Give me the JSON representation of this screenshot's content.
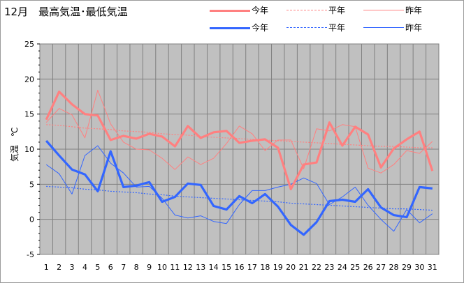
{
  "title": "12月　最高気温･最低気温",
  "legend": [
    {
      "label": "今年",
      "color": "#ff8080",
      "style": "thick"
    },
    {
      "label": "平年",
      "color": "#ff8080",
      "style": "dashed"
    },
    {
      "label": "昨年",
      "color": "#ff8080",
      "style": "thin"
    },
    {
      "label": "今年",
      "color": "#3366ff",
      "style": "thick"
    },
    {
      "label": "平年",
      "color": "#3366ff",
      "style": "dashed"
    },
    {
      "label": "昨年",
      "color": "#3366ff",
      "style": "thin"
    }
  ],
  "chart_data": {
    "type": "line",
    "title": "12月　最高気温･最低気温",
    "ylabel": "気温　℃",
    "xlabel": "",
    "x": [
      1,
      2,
      3,
      4,
      5,
      6,
      7,
      8,
      9,
      10,
      11,
      12,
      13,
      14,
      15,
      16,
      17,
      18,
      19,
      20,
      21,
      22,
      23,
      24,
      25,
      26,
      27,
      28,
      29,
      30,
      31
    ],
    "ylim": [
      -5,
      25
    ],
    "yticks": [
      -5,
      0,
      5,
      10,
      15,
      20,
      25
    ],
    "grid": true,
    "series": [
      {
        "group": "max",
        "name": "今年",
        "color": "#ff8080",
        "style": "thick",
        "values": [
          14.2,
          18.2,
          16.4,
          15.0,
          14.8,
          11.3,
          11.9,
          11.5,
          12.2,
          11.8,
          10.4,
          13.3,
          11.6,
          12.4,
          12.6,
          10.9,
          11.2,
          11.4,
          10.2,
          4.3,
          7.8,
          8.1,
          13.8,
          10.5,
          13.2,
          12.1,
          7.4,
          10.1,
          11.4,
          12.5,
          6.9
        ]
      },
      {
        "group": "max",
        "name": "平年",
        "color": "#ff8080",
        "style": "dashed",
        "values": [
          13.5,
          13.4,
          13.2,
          13.0,
          12.9,
          12.8,
          12.6,
          12.5,
          12.4,
          12.2,
          12.1,
          12.0,
          11.8,
          11.7,
          11.6,
          11.5,
          11.4,
          11.3,
          11.2,
          11.1,
          11.0,
          10.9,
          10.8,
          10.7,
          10.6,
          10.5,
          10.4,
          10.4,
          10.3,
          10.2,
          10.2
        ]
      },
      {
        "group": "max",
        "name": "昨年",
        "color": "#ff8080",
        "style": "thin",
        "values": [
          13.8,
          15.8,
          14.9,
          11.6,
          18.4,
          13.6,
          11.0,
          10.0,
          9.9,
          8.7,
          7.1,
          8.9,
          7.8,
          8.7,
          10.8,
          13.3,
          12.2,
          9.8,
          11.3,
          11.3,
          7.2,
          12.9,
          12.6,
          13.5,
          13.2,
          7.3,
          6.6,
          7.8,
          9.8,
          9.4,
          11.1
        ]
      },
      {
        "group": "min",
        "name": "今年",
        "color": "#3366ff",
        "style": "thick",
        "values": [
          11.2,
          9.1,
          7.1,
          6.4,
          4.0,
          9.7,
          4.6,
          4.8,
          5.3,
          2.5,
          3.2,
          5.1,
          4.9,
          1.9,
          1.4,
          3.3,
          2.3,
          3.6,
          1.8,
          -0.8,
          -2.2,
          -0.4,
          2.6,
          2.8,
          2.5,
          4.3,
          1.7,
          0.6,
          0.3,
          4.6,
          4.4
        ]
      },
      {
        "group": "min",
        "name": "平年",
        "color": "#3366ff",
        "style": "dashed",
        "values": [
          4.7,
          4.6,
          4.5,
          4.3,
          4.2,
          4.0,
          3.9,
          3.8,
          3.6,
          3.5,
          3.3,
          3.2,
          3.1,
          3.0,
          2.9,
          2.8,
          2.7,
          2.6,
          2.5,
          2.3,
          2.2,
          2.1,
          2.0,
          1.9,
          1.8,
          1.7,
          1.6,
          1.5,
          1.5,
          1.4,
          1.3
        ]
      },
      {
        "group": "min",
        "name": "昨年",
        "color": "#3366ff",
        "style": "thin",
        "values": [
          7.8,
          6.5,
          3.6,
          9.1,
          10.5,
          8.0,
          6.6,
          4.6,
          4.7,
          3.0,
          0.6,
          0.2,
          0.5,
          -0.3,
          -0.6,
          2.1,
          4.1,
          4.1,
          4.6,
          5.0,
          5.9,
          5.1,
          2.1,
          3.2,
          4.6,
          2.0,
          0.0,
          -1.7,
          1.4,
          -0.5,
          0.8
        ]
      }
    ]
  }
}
